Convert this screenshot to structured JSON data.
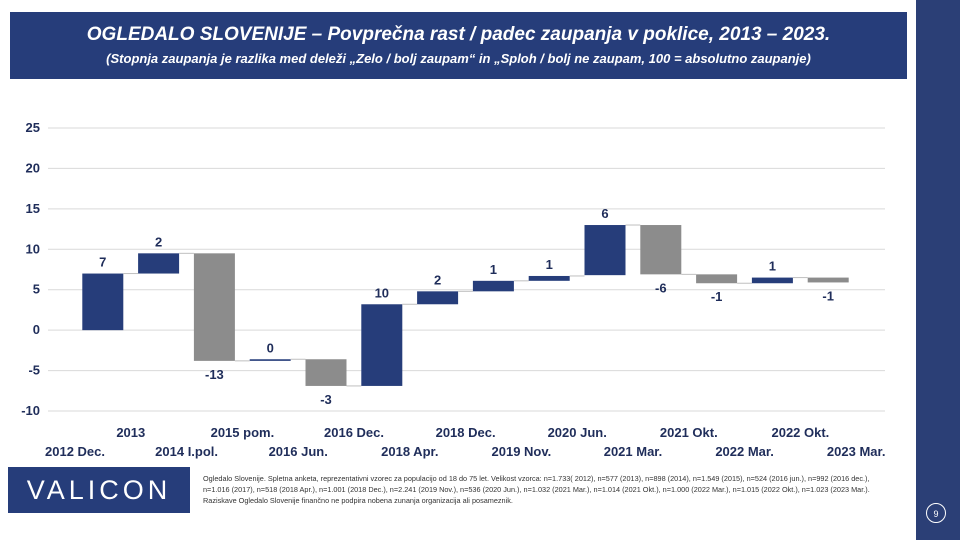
{
  "header": {
    "title": "OGLEDALO SLOVENIJE – Povprečna rast / padec zaupanja v poklice, 2013 – 2023.",
    "subtitle": "(Stopnja zaupanja je razlika med deleži „Zelo / bolj zaupam“ in „Sploh / bolj ne zaupam, 100 = absolutno zaupanje)"
  },
  "logo_text": "VALICON",
  "footnote": "Ogledalo Slovenije. Spletna anketa, reprezentativni vzorec za populacijo od 18 do 75 let. Velikost vzorca: n=1.733( 2012), n=577 (2013), n=898 (2014), n=1.549 (2015), n=524 (2016 jun.), n=992 (2016 dec.), n=1.016 (2017), n=518 (2018 Apr.), n=1.001 (2018 Dec.), n=2.241 (2019 Nov.), n=536 (2020 Jun.), n=1.032 (2021 Mar.), n=1.014 (2021 Okt.), n=1.000 (2022 Mar.), n=1.015 (2022 Okt.), n=1.023 (2023 Mar.). Raziskave Ogledalo Slovenije finančno ne podpira nobena zunanja organizacija ali posameznik.",
  "page_number": "9",
  "colors": {
    "positive": "#263d7a",
    "negative": "#8c8c8c",
    "header": "#263d7a",
    "sidebar": "#2b3f76"
  },
  "chart_data": {
    "type": "bar",
    "subtype": "waterfall",
    "categories": [
      "2012 Dec.",
      "2013",
      "2014 I.pol.",
      "2015 pom.",
      "2016 Jun.",
      "2016 Dec.",
      "2018 Apr.",
      "2018 Dec.",
      "2019 Nov.",
      "2020 Jun.",
      "2021 Mar.",
      "2021 Okt.",
      "2022 Mar.",
      "2022 Okt.",
      "2023 Mar."
    ],
    "bars": [
      {
        "start": 0,
        "end": 7,
        "label": "7"
      },
      {
        "start": 7,
        "end": 9.5,
        "label": "2"
      },
      {
        "start": 9.5,
        "end": -3.8,
        "label": "-13"
      },
      {
        "start": -3.8,
        "end": -3.6,
        "label": "0"
      },
      {
        "start": -3.6,
        "end": -6.9,
        "label": "-3"
      },
      {
        "start": -6.9,
        "end": 3.2,
        "label": "10"
      },
      {
        "start": 3.2,
        "end": 4.8,
        "label": "2"
      },
      {
        "start": 4.8,
        "end": 6.1,
        "label": "1"
      },
      {
        "start": 6.1,
        "end": 6.7,
        "label": "1"
      },
      {
        "start": 6.8,
        "end": 13,
        "label": "6"
      },
      {
        "start": 13,
        "end": 6.9,
        "label": "-6"
      },
      {
        "start": 6.9,
        "end": 5.8,
        "label": "-1"
      },
      {
        "start": 5.8,
        "end": 6.5,
        "label": "1"
      },
      {
        "start": 6.5,
        "end": 5.9,
        "label": "-1"
      }
    ],
    "ylim": [
      -10,
      25
    ],
    "yticks": [
      -10,
      -5,
      0,
      5,
      10,
      15,
      20,
      25
    ],
    "grid": true
  }
}
